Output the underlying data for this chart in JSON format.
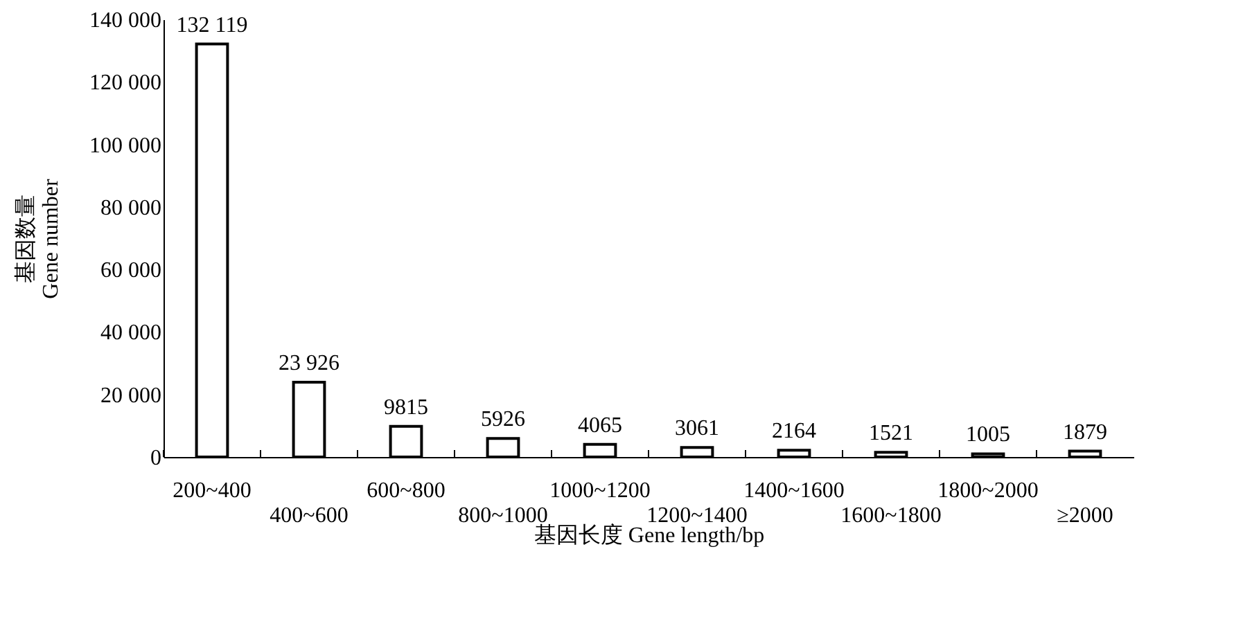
{
  "chart_data": {
    "type": "bar",
    "xlabel": "基因长度 Gene length/bp",
    "ylabel": "基因数量\nGene number",
    "categories": [
      "200~400",
      "400~600",
      "600~800",
      "800~1000",
      "1000~1200",
      "1200~1400",
      "1400~1600",
      "1600~1800",
      "1800~2000",
      "≥2000"
    ],
    "values": [
      132119,
      23926,
      9815,
      5926,
      4065,
      3061,
      2164,
      1521,
      1005,
      1879
    ],
    "value_labels": [
      "132 119",
      "23 926",
      "9815",
      "5926",
      "4065",
      "3061",
      "2164",
      "1521",
      "1005",
      "1879"
    ],
    "color": "#ffffff",
    "ylim": [
      0,
      140000
    ],
    "yticks": [
      {
        "value": 0,
        "label": "0"
      },
      {
        "value": 20000,
        "label": "20 000"
      },
      {
        "value": 40000,
        "label": "40 000"
      },
      {
        "value": 60000,
        "label": "60 000"
      },
      {
        "value": 80000,
        "label": "80 000"
      },
      {
        "value": 100000,
        "label": "100 000"
      },
      {
        "value": 120000,
        "label": "120 000"
      },
      {
        "value": 140000,
        "label": "140 000"
      }
    ],
    "grid": false
  }
}
